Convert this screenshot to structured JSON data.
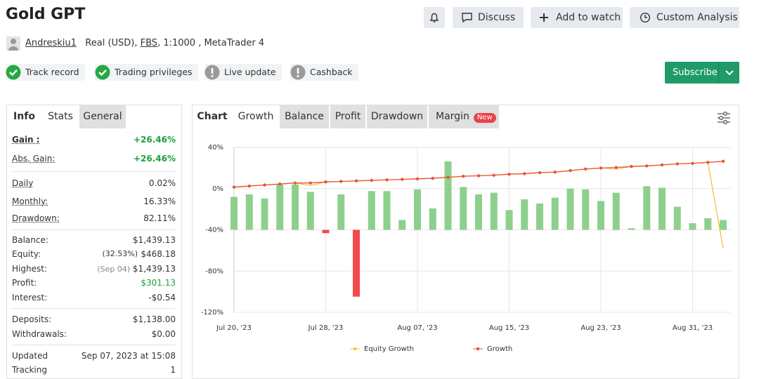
{
  "header": {
    "title": "Gold GPT",
    "buttons": [
      "Discuss",
      "Add to watch",
      "Custom Analysis"
    ]
  },
  "account": {
    "user": "Andreskiu1",
    "type": "Real (USD),",
    "broker": "FBS",
    "details": ", 1:1000 , MetaTrader 4"
  },
  "badges": [
    "Track record",
    "Trading privileges",
    "Live update",
    "Cashback"
  ],
  "subscribe": "Subscribe",
  "stats_tabs": [
    "Info",
    "Stats",
    "General"
  ],
  "stats": [
    [
      {
        "label": "Gain :",
        "value": "+26.46%",
        "color": "#1e9e3e"
      },
      {
        "label": "Abs. Gain:",
        "value": "+26.46%",
        "color": "#1e9e3e"
      }
    ],
    [
      {
        "label": "Daily",
        "value": "0.02%"
      },
      {
        "label": "Monthly:",
        "value": "16.33%"
      },
      {
        "label": "Drawdown:",
        "value": "82.11%"
      }
    ],
    [
      {
        "label": "Balance:",
        "value": "$1,439.13"
      },
      {
        "label": "Equity:",
        "note": "(32.53%)",
        "value": "$468.18"
      },
      {
        "label": "Highest:",
        "note": "(Sep 04)",
        "value": "$1,439.13"
      },
      {
        "label": "Profit:",
        "value": "$301.13",
        "color": "#1e9e3e"
      },
      {
        "label": "Interest:",
        "value": "-$0.54"
      }
    ],
    [
      {
        "label": "Deposits:",
        "value": "$1,138.00"
      },
      {
        "label": "Withdrawals:",
        "value": "$0.00"
      }
    ],
    [
      {
        "label": "Updated",
        "value": "Sep 07, 2023 at 15:08"
      },
      {
        "label": "Tracking",
        "value": "1"
      }
    ]
  ],
  "chart_tabs": [
    "Chart",
    "Growth",
    "Balance",
    "Profit",
    "Drawdown",
    "Margin"
  ],
  "new_badge": "New",
  "chart_data": {
    "type": "line",
    "categories": [
      "Jul 20, '23",
      null,
      null,
      null,
      null,
      null,
      "Jul 28, '23",
      null,
      null,
      null,
      null,
      null,
      "Aug 07, '23",
      null,
      null,
      null,
      null,
      null,
      "Aug 15, '23",
      null,
      null,
      null,
      null,
      null,
      "Aug 23, '23",
      null,
      null,
      null,
      null,
      null,
      "Aug 31, '23",
      null,
      null
    ],
    "ylim": [
      -120,
      40
    ],
    "yticks": [
      {
        "value": 40,
        "label": "40%"
      },
      {
        "value": 0,
        "label": "0%"
      },
      {
        "value": -40,
        "label": "-40%"
      },
      {
        "value": -80,
        "label": "-80%"
      },
      {
        "value": -120,
        "label": "-120%"
      }
    ],
    "y2lim": [
      -10,
      10
    ],
    "grid": true,
    "series": [
      {
        "name": "Equity Growth",
        "color": "#f2c23a",
        "values": [
          1.5,
          2.5,
          3.5,
          4.5,
          5.5,
          3,
          6.5,
          7,
          7.5,
          8,
          8.5,
          9,
          9.5,
          10,
          11,
          12,
          12.5,
          13,
          14,
          14.5,
          15.5,
          16,
          17.5,
          19,
          20,
          19,
          21.5,
          22,
          23,
          24,
          24.5,
          25.5,
          -58
        ]
      },
      {
        "name": "Growth",
        "color": "#e4553b",
        "values": [
          1.5,
          2.5,
          3.5,
          4.5,
          5.5,
          5.5,
          6.5,
          7,
          7.5,
          8,
          8.5,
          9,
          9.5,
          10,
          11,
          12,
          12.5,
          13,
          14,
          14.5,
          15.5,
          16,
          17.5,
          19,
          20,
          20.5,
          21.5,
          22,
          23,
          24,
          24.5,
          25.5,
          26.5
        ]
      }
    ],
    "bars": {
      "axis": "y2",
      "color": "#8dd08d",
      "negative_color": "#f24a4a",
      "values": [
        4.0,
        4.3,
        3.8,
        5.5,
        5.5,
        4.6,
        -0.4,
        4.3,
        -8.1,
        4.7,
        4.7,
        1.2,
        4.9,
        2.6,
        8.3,
        5.2,
        4.3,
        4.5,
        2.4,
        3.7,
        3.2,
        3.9,
        5.0,
        4.9,
        3.5,
        4.5,
        0.2,
        5.3,
        5.1,
        2.8,
        0.8,
        1.4,
        1.2
      ]
    }
  }
}
